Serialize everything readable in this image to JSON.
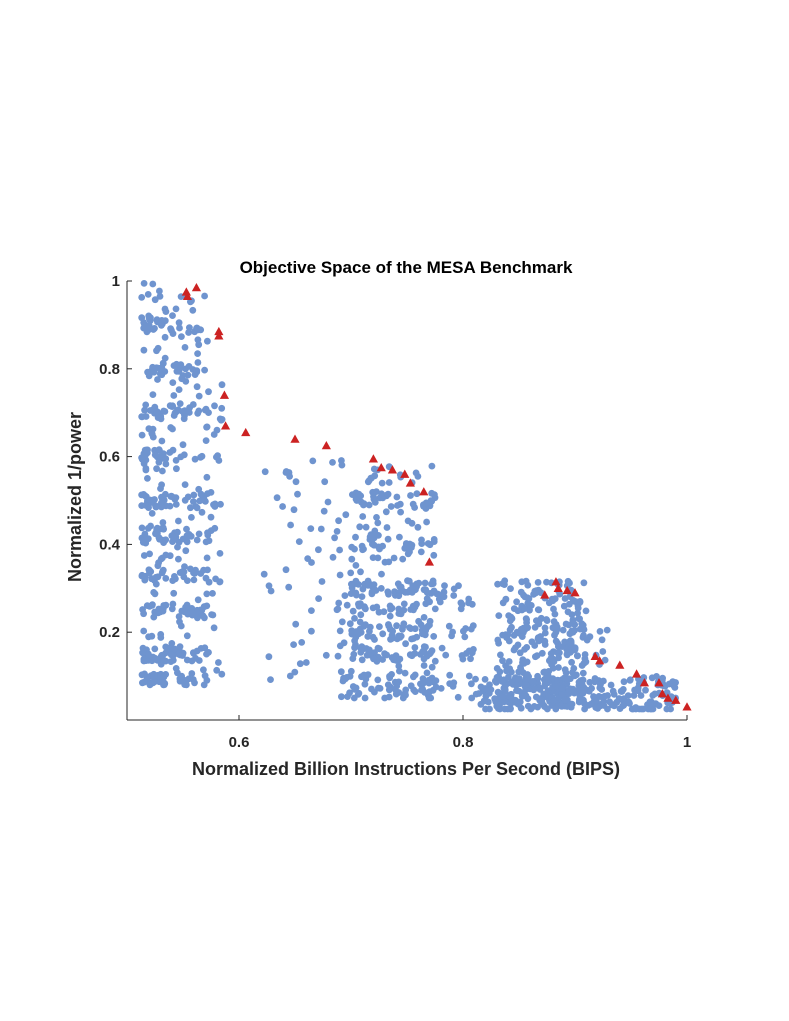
{
  "chart_data": {
    "type": "scatter",
    "title": "Objective Space of the MESA Benchmark",
    "xlabel": "Normalized Billion Instructions Per Second (BIPS)",
    "ylabel": "Normalized 1/power",
    "xlim": [
      0.5,
      1.0
    ],
    "ylim": [
      0.0,
      1.0
    ],
    "xticks": [
      0.6,
      0.8,
      1.0
    ],
    "xtick_labels": [
      "0.6",
      "0.8",
      "1"
    ],
    "yticks": [
      0.2,
      0.4,
      0.6,
      0.8,
      1.0
    ],
    "ytick_labels": [
      "0.2",
      "0.4",
      "0.6",
      "0.8",
      "1"
    ],
    "grid": false,
    "series": [
      {
        "marker": "circle",
        "color": "#6f94cf",
        "clusters": [
          {
            "x": [
              0.513,
              0.535
            ],
            "y": [
              0.08,
              1.0
            ],
            "bands": [
              0.09,
              0.15,
              0.25,
              0.33,
              0.42,
              0.5,
              0.6,
              0.7,
              0.8,
              0.9
            ],
            "count": 260
          },
          {
            "x": [
              0.538,
              0.572
            ],
            "y": [
              0.08,
              0.99
            ],
            "bands": [
              0.09,
              0.15,
              0.25,
              0.33,
              0.42,
              0.5,
              0.6,
              0.7,
              0.8,
              0.88
            ],
            "count": 230
          },
          {
            "x": [
              0.57,
              0.585
            ],
            "y": [
              0.08,
              0.8
            ],
            "bands": [
              0.09,
              0.25,
              0.33,
              0.42,
              0.5,
              0.6,
              0.7
            ],
            "count": 40
          },
          {
            "x": [
              0.62,
              0.7
            ],
            "y": [
              0.06,
              0.6
            ],
            "bands": [],
            "count": 55
          },
          {
            "x": [
              0.685,
              0.705
            ],
            "y": [
              0.05,
              0.28
            ],
            "bands": [],
            "count": 20
          },
          {
            "x": [
              0.7,
              0.775
            ],
            "y": [
              0.05,
              0.58
            ],
            "bands": [
              0.06,
              0.09,
              0.15,
              0.2,
              0.25,
              0.3,
              0.4,
              0.5
            ],
            "count": 340
          },
          {
            "x": [
              0.76,
              0.81
            ],
            "y": [
              0.05,
              0.31
            ],
            "bands": [
              0.06,
              0.09,
              0.15,
              0.2,
              0.28
            ],
            "count": 70
          },
          {
            "x": [
              0.81,
              0.99
            ],
            "y": [
              0.025,
              0.1
            ],
            "bands": [
              0.03,
              0.05,
              0.08
            ],
            "count": 280
          },
          {
            "x": [
              0.83,
              0.91
            ],
            "y": [
              0.04,
              0.32
            ],
            "bands": [],
            "count": 280
          },
          {
            "x": [
              0.89,
              0.93
            ],
            "y": [
              0.12,
              0.22
            ],
            "bands": [],
            "count": 20
          }
        ]
      },
      {
        "marker": "triangle",
        "color": "#cc2222",
        "x": [
          0.553,
          0.554,
          0.562,
          0.582,
          0.582,
          0.587,
          0.588,
          0.606,
          0.65,
          0.678,
          0.72,
          0.727,
          0.737,
          0.748,
          0.753,
          0.765,
          0.77,
          0.873,
          0.883,
          0.885,
          0.893,
          0.9,
          0.918,
          0.922,
          0.94,
          0.955,
          0.962,
          0.975,
          0.978,
          0.983,
          0.99,
          1.0
        ],
        "y": [
          0.975,
          0.965,
          0.985,
          0.885,
          0.875,
          0.74,
          0.67,
          0.655,
          0.64,
          0.625,
          0.595,
          0.575,
          0.57,
          0.56,
          0.54,
          0.52,
          0.36,
          0.285,
          0.315,
          0.3,
          0.295,
          0.29,
          0.145,
          0.135,
          0.125,
          0.105,
          0.085,
          0.085,
          0.06,
          0.05,
          0.045,
          0.03
        ]
      }
    ]
  }
}
